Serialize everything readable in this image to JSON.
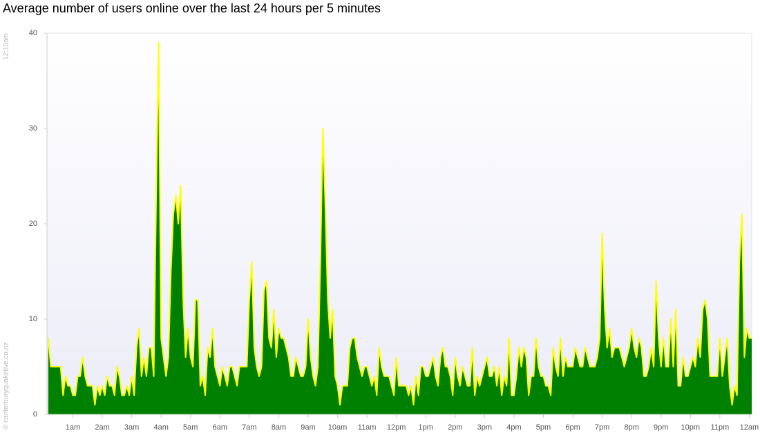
{
  "chart_data": {
    "type": "area",
    "title": "Average number of users online over the last 24 hours per 5 minutes",
    "start_label": "12:10am",
    "credit": "© canterburyquakelive.co.nz",
    "fill_color": "#008000",
    "line_color": "#ffff00",
    "xlim": [
      0,
      287
    ],
    "xticks": [
      {
        "value": 10,
        "label": "1am"
      },
      {
        "value": 22,
        "label": "2am"
      },
      {
        "value": 34,
        "label": "3am"
      },
      {
        "value": 46,
        "label": "4am"
      },
      {
        "value": 58,
        "label": "5am"
      },
      {
        "value": 70,
        "label": "6am"
      },
      {
        "value": 82,
        "label": "7am"
      },
      {
        "value": 94,
        "label": "8am"
      },
      {
        "value": 106,
        "label": "9am"
      },
      {
        "value": 118,
        "label": "10am"
      },
      {
        "value": 130,
        "label": "11am"
      },
      {
        "value": 142,
        "label": "12pm"
      },
      {
        "value": 154,
        "label": "1pm"
      },
      {
        "value": 166,
        "label": "2pm"
      },
      {
        "value": 178,
        "label": "3pm"
      },
      {
        "value": 190,
        "label": "4pm"
      },
      {
        "value": 202,
        "label": "5pm"
      },
      {
        "value": 214,
        "label": "6pm"
      },
      {
        "value": 226,
        "label": "7pm"
      },
      {
        "value": 238,
        "label": "8pm"
      },
      {
        "value": 250,
        "label": "9pm"
      },
      {
        "value": 262,
        "label": "10pm"
      },
      {
        "value": 274,
        "label": "11pm"
      },
      {
        "value": 286,
        "label": "12am"
      }
    ],
    "ylim": [
      0,
      40
    ],
    "yticks": [
      0,
      10,
      20,
      30,
      40
    ],
    "values": [
      8,
      5,
      5,
      5,
      5,
      5,
      2,
      4,
      3,
      3,
      2,
      2,
      4,
      4,
      6,
      4,
      3,
      3,
      3,
      1,
      3,
      2,
      3,
      2,
      4,
      3,
      3,
      2,
      5,
      4,
      2,
      2,
      3,
      2,
      4,
      2,
      7,
      9,
      4,
      6,
      4,
      7,
      7,
      4,
      23,
      39,
      8,
      6,
      4,
      6,
      15,
      21,
      23,
      20,
      24,
      12,
      6,
      9,
      6,
      5,
      12,
      12,
      3,
      4,
      2,
      7,
      6,
      9,
      5,
      4,
      3,
      5,
      4,
      3,
      5,
      5,
      4,
      3,
      5,
      5,
      5,
      5,
      12,
      16,
      7,
      5,
      4,
      5,
      13,
      14,
      8,
      7,
      11,
      6,
      9,
      8,
      8,
      7,
      6,
      4,
      4,
      6,
      5,
      4,
      4,
      5,
      10,
      6,
      4,
      3,
      5,
      16,
      30,
      22,
      12,
      8,
      11,
      4,
      3,
      1,
      3,
      3,
      3,
      7,
      8,
      8,
      6,
      5,
      4,
      5,
      5,
      4,
      3,
      4,
      2,
      7,
      5,
      4,
      4,
      4,
      3,
      2,
      6,
      3,
      3,
      3,
      3,
      2,
      3,
      1,
      4,
      2,
      5,
      5,
      4,
      4,
      5,
      6,
      4,
      3,
      6,
      7,
      5,
      5,
      4,
      2,
      6,
      4,
      3,
      5,
      4,
      3,
      3,
      7,
      2,
      4,
      3,
      4,
      5,
      6,
      4,
      4,
      5,
      3,
      5,
      2,
      4,
      3,
      8,
      2,
      2,
      4,
      7,
      5,
      7,
      6,
      2,
      4,
      4,
      8,
      5,
      4,
      4,
      3,
      3,
      2,
      7,
      5,
      4,
      8,
      4,
      6,
      5,
      5,
      5,
      7,
      6,
      5,
      5,
      7,
      6,
      5,
      5,
      5,
      6,
      8,
      19,
      11,
      7,
      9,
      6,
      7,
      7,
      7,
      6,
      5,
      6,
      7,
      9,
      7,
      6,
      8,
      7,
      4,
      4,
      5,
      7,
      5,
      14,
      8,
      5,
      8,
      5,
      5,
      10,
      5,
      11,
      3,
      3,
      6,
      4,
      4,
      5,
      6,
      5,
      8,
      6,
      11,
      12,
      10,
      4,
      4,
      4,
      4,
      8,
      4,
      6,
      8,
      3,
      1,
      3,
      2,
      16,
      21,
      6,
      9,
      8,
      8
    ]
  }
}
